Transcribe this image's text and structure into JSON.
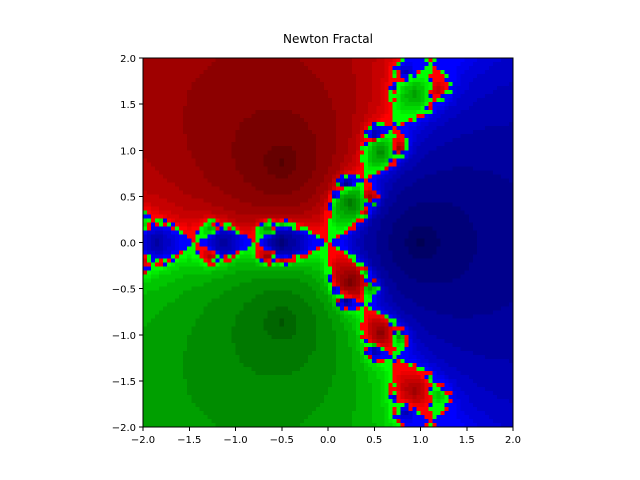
{
  "chart_data": {
    "type": "newton-fractal",
    "title": "Newton Fractal",
    "attractors": [
      {
        "x": 1,
        "y": 0,
        "color": "#0000ff"
      },
      {
        "x": -0.5,
        "y": 0.866,
        "color": "#ff0000"
      },
      {
        "x": -0.5,
        "y": -0.866,
        "color": "#00ff00"
      }
    ],
    "xlim": [
      -2,
      2
    ],
    "ylim": [
      -2,
      2
    ],
    "xticks": [
      {
        "value": -2,
        "label": "−2.0"
      },
      {
        "value": -1.5,
        "label": "−1.5"
      },
      {
        "value": -1,
        "label": "−1.0"
      },
      {
        "value": -0.5,
        "label": "−0.5"
      },
      {
        "value": 0,
        "label": "0.0"
      },
      {
        "value": 0.5,
        "label": "0.5"
      },
      {
        "value": 1,
        "label": "1.0"
      },
      {
        "value": 1.5,
        "label": "1.5"
      },
      {
        "value": 2,
        "label": "2.0"
      }
    ],
    "yticks": [
      {
        "value": -2,
        "label": "−2.0"
      },
      {
        "value": -1.5,
        "label": "−1.5"
      },
      {
        "value": -1,
        "label": "−1.0"
      },
      {
        "value": -0.5,
        "label": "−0.5"
      },
      {
        "value": 0,
        "label": "0.0"
      },
      {
        "value": 0.5,
        "label": "0.5"
      },
      {
        "value": 1,
        "label": "1.0"
      },
      {
        "value": 1.5,
        "label": "1.5"
      },
      {
        "value": 2,
        "label": "2.0"
      }
    ]
  }
}
